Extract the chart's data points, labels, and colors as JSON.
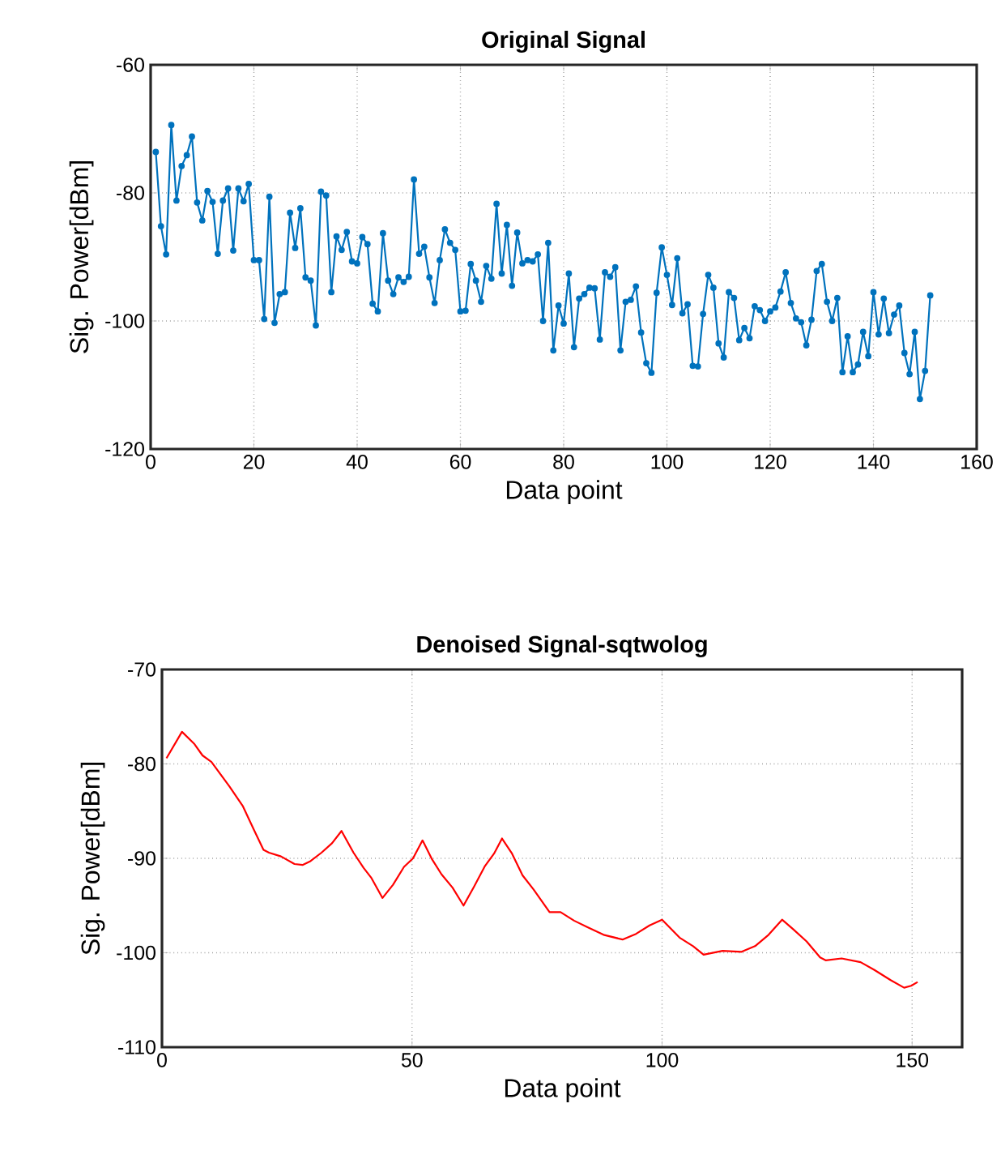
{
  "chart_data": [
    {
      "type": "line",
      "title": "Original Signal",
      "xlabel": "Data point",
      "ylabel": "Sig. Power[dBm]",
      "x": [
        1,
        2,
        3,
        4,
        5,
        6,
        7,
        8,
        9,
        10,
        11,
        12,
        13,
        14,
        15,
        16,
        17,
        18,
        19,
        20,
        21,
        22,
        23,
        24,
        25,
        26,
        27,
        28,
        29,
        30,
        31,
        32,
        33,
        34,
        35,
        36,
        37,
        38,
        39,
        40,
        41,
        42,
        43,
        44,
        45,
        46,
        47,
        48,
        49,
        50,
        51,
        52,
        53,
        54,
        55,
        56,
        57,
        58,
        59,
        60,
        61,
        62,
        63,
        64,
        65,
        66,
        67,
        68,
        69,
        70,
        71,
        72,
        73,
        74,
        75,
        76,
        77,
        78,
        79,
        80,
        81,
        82,
        83,
        84,
        85,
        86,
        87,
        88,
        89,
        90,
        91,
        92,
        93,
        94,
        95,
        96,
        97,
        98,
        99,
        100,
        101,
        102,
        103,
        104,
        105,
        106,
        107,
        108,
        109,
        110,
        111,
        112,
        113,
        114,
        115,
        116,
        117,
        118,
        119,
        120,
        121,
        122,
        123,
        124,
        125,
        126,
        127,
        128,
        129,
        130,
        131,
        132,
        133,
        134,
        135,
        136,
        137,
        138,
        139,
        140,
        141,
        142,
        143,
        144,
        145,
        146,
        147,
        148,
        149,
        150,
        151
      ],
      "series": [
        {
          "color": "#0072bd",
          "values": [
            -73.6,
            -85.2,
            -89.6,
            -69.4,
            -81.2,
            -75.8,
            -74.1,
            -71.2,
            -81.5,
            -84.3,
            -79.7,
            -81.4,
            -89.5,
            -81.2,
            -79.3,
            -89,
            -79.3,
            -81.3,
            -78.6,
            -90.5,
            -90.5,
            -99.7,
            -80.6,
            -100.3,
            -95.8,
            -95.5,
            -83.1,
            -88.6,
            -82.4,
            -93.2,
            -93.7,
            -100.7,
            -79.8,
            -80.4,
            -95.5,
            -86.8,
            -88.9,
            -86.1,
            -90.7,
            -91,
            -86.9,
            -88,
            -97.3,
            -98.5,
            -86.3,
            -93.7,
            -95.8,
            -93.2,
            -93.9,
            -93.1,
            -77.9,
            -89.5,
            -88.4,
            -93.2,
            -97.2,
            -90.5,
            -85.7,
            -87.8,
            -88.9,
            -98.5,
            -98.4,
            -91.1,
            -93.7,
            -97,
            -91.4,
            -93.4,
            -81.7,
            -92.6,
            -85,
            -94.5,
            -86.2,
            -91,
            -90.5,
            -90.7,
            -89.6,
            -100,
            -87.8,
            -104.6,
            -97.6,
            -100.4,
            -92.6,
            -104.1,
            -96.5,
            -95.8,
            -94.8,
            -94.9,
            -102.9,
            -92.4,
            -93.1,
            -91.6,
            -104.6,
            -97,
            -96.7,
            -94.6,
            -101.8,
            -106.6,
            -108.1,
            -95.6,
            -88.5,
            -92.8,
            -97.5,
            -90.2,
            -98.8,
            -97.4,
            -107,
            -107.1,
            -98.9,
            -92.8,
            -94.8,
            -103.5,
            -105.7,
            -95.5,
            -96.4,
            -103,
            -101.1,
            -102.7,
            -97.7,
            -98.3,
            -100,
            -98.5,
            -97.9,
            -95.4,
            -92.4,
            -97.2,
            -99.6,
            -100.2,
            -103.8,
            -99.8,
            -92.2,
            -91.1,
            -97,
            -100,
            -96.4,
            -108,
            -102.4,
            -108,
            -106.8,
            -101.7,
            -105.5,
            -95.5,
            -102.1,
            -96.5,
            -101.9,
            -99,
            -97.6,
            -105,
            -108.3,
            -101.7,
            -112.2,
            -107.8,
            -96
          ]
        }
      ],
      "xlim": [
        0,
        160
      ],
      "ylim": [
        -120,
        -60
      ],
      "xticks": [
        0,
        20,
        40,
        60,
        80,
        100,
        120,
        140,
        160
      ],
      "yticks": [
        -120,
        -100,
        -80,
        -60
      ],
      "grid": true,
      "marker": "circle"
    },
    {
      "type": "line",
      "title": "Denoised Signal-sqtwolog",
      "xlabel": "Data point",
      "ylabel": "Sig. Power[dBm]",
      "x": [
        0.9,
        4,
        6.5,
        8.1,
        9.9,
        13.5,
        16.2,
        18.4,
        20.3,
        21.4,
        23.8,
        26.5,
        28.1,
        29.7,
        31.9,
        34,
        35.9,
        38.3,
        40.3,
        41.9,
        44.1,
        46.2,
        48.4,
        50.2,
        52.1,
        54,
        55.9,
        58.1,
        60.3,
        62.4,
        64.6,
        66.4,
        68,
        70,
        72.1,
        74.3,
        77.5,
        79.7,
        82.4,
        85.1,
        88.3,
        92.1,
        94.8,
        97.5,
        100,
        103.5,
        106.2,
        108.3,
        112.1,
        115.9,
        118.6,
        121.3,
        124,
        126.2,
        128.9,
        131.6,
        132.7,
        135.9,
        139.7,
        142.4,
        145.7,
        148.4,
        149.8,
        151.1
      ],
      "series": [
        {
          "color": "#ff0000",
          "values": [
            -79.4,
            -76.6,
            -77.9,
            -79.1,
            -79.8,
            -82.4,
            -84.5,
            -87,
            -89.1,
            -89.4,
            -89.8,
            -90.6,
            -90.7,
            -90.3,
            -89.4,
            -88.4,
            -87.1,
            -89.4,
            -91,
            -92.1,
            -94.2,
            -92.8,
            -90.9,
            -90,
            -88.1,
            -90.1,
            -91.7,
            -93.1,
            -95,
            -93,
            -90.8,
            -89.5,
            -87.9,
            -89.5,
            -91.8,
            -93.3,
            -95.7,
            -95.7,
            -96.6,
            -97.3,
            -98.1,
            -98.6,
            -98,
            -97.1,
            -96.5,
            -98.4,
            -99.3,
            -100.2,
            -99.8,
            -99.9,
            -99.3,
            -98.1,
            -96.5,
            -97.5,
            -98.8,
            -100.5,
            -100.8,
            -100.6,
            -101,
            -101.8,
            -102.9,
            -103.7,
            -103.5,
            -103.1
          ]
        }
      ],
      "xlim": [
        0,
        160
      ],
      "ylim": [
        -110,
        -70
      ],
      "xticks": [
        0,
        50,
        100,
        150
      ],
      "yticks": [
        -110,
        -100,
        -90,
        -80,
        -70
      ],
      "grid": true,
      "marker": "none"
    }
  ]
}
